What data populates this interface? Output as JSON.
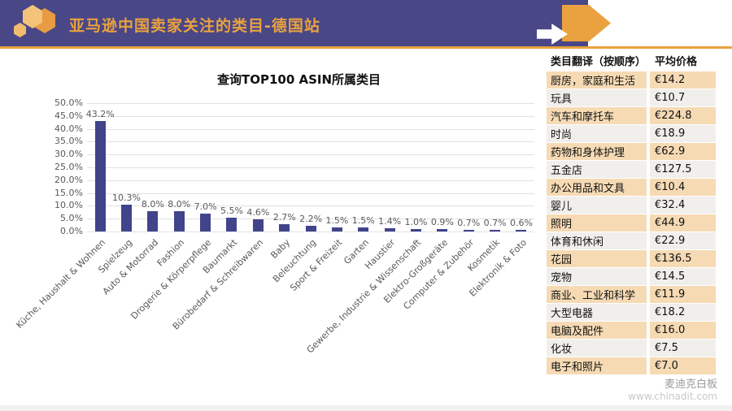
{
  "header": {
    "title": "亚马逊中国卖家关注的类目-德国站"
  },
  "chart_data": {
    "type": "bar",
    "title": "查询TOP100 ASIN所属类目",
    "categories": [
      "Küche, Haushalt & Wohnen",
      "Spielzeug",
      "Auto & Motorrad",
      "Fashion",
      "Drogerie & Körperpflege",
      "Baumarkt",
      "Bürobedarf & Schreibwaren",
      "Baby",
      "Beleuchtung",
      "Sport & Freizeit",
      "Garten",
      "Haustier",
      "Gewerbe, Industrie & Wissenschaft",
      "Elektro-Großgeräte",
      "Computer & Zubehör",
      "Kosmetik",
      "Elektronik & Foto"
    ],
    "values": [
      43.2,
      10.3,
      8.0,
      8.0,
      7.0,
      5.5,
      4.6,
      2.7,
      2.2,
      1.5,
      1.5,
      1.4,
      1.0,
      0.9,
      0.7,
      0.7,
      0.6
    ],
    "value_label_format": "0.0%",
    "xlabel": "",
    "ylabel": "",
    "ylim": [
      0,
      50
    ],
    "ytick_step": 5,
    "grid": true,
    "legend": false,
    "bar_color": "#41448a"
  },
  "table": {
    "headers": [
      "类目翻译（按顺序）",
      "平均价格"
    ],
    "rows": [
      [
        "厨房，家庭和生活",
        "€14.2"
      ],
      [
        "玩具",
        "€10.7"
      ],
      [
        "汽车和摩托车",
        "€224.8"
      ],
      [
        "时尚",
        "€18.9"
      ],
      [
        "药物和身体护理",
        "€62.9"
      ],
      [
        "五金店",
        "€127.5"
      ],
      [
        "办公用品和文具",
        "€10.4"
      ],
      [
        "婴儿",
        "€32.4"
      ],
      [
        "照明",
        "€44.9"
      ],
      [
        "体育和休闲",
        "€22.9"
      ],
      [
        "花园",
        "€136.5"
      ],
      [
        "宠物",
        "€14.5"
      ],
      [
        "商业、工业和科学",
        "€11.9"
      ],
      [
        "大型电器",
        "€18.2"
      ],
      [
        "电脑及配件",
        "€16.0"
      ],
      [
        "化妆",
        "€7.5"
      ],
      [
        "电子和照片",
        "€7.0"
      ]
    ]
  },
  "watermark": {
    "brand": "麦迪克白板",
    "url": "www.chinadit.com"
  },
  "colors": {
    "header_purple": "#4a4787",
    "accent_orange": "#e9a23f",
    "bar": "#41448a",
    "table_row_peach": "#f6dab4",
    "table_row_gray": "#f1efec"
  }
}
